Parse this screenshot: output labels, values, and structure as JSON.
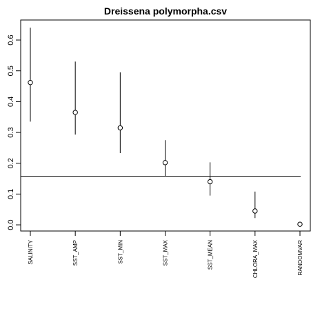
{
  "chart_data": {
    "type": "scatter",
    "title": "Dreissena polymorpha.csv",
    "xlabel": "",
    "ylabel": "",
    "categories": [
      "SALINITY",
      "SST_AMP",
      "SST_MIN",
      "SST_MAX",
      "SST_MEAN",
      "CHLORA_MAX",
      "RANDOMVAR"
    ],
    "values": [
      0.462,
      0.365,
      0.315,
      0.202,
      0.14,
      0.045,
      0.002
    ],
    "lower": [
      0.335,
      0.293,
      0.233,
      0.158,
      0.095,
      0.022,
      null
    ],
    "upper": [
      0.64,
      0.53,
      0.495,
      0.275,
      0.203,
      0.108,
      null
    ],
    "reference_line": 0.158,
    "ylim": [
      -0.02,
      0.665
    ],
    "yticks": [
      0.0,
      0.1,
      0.2,
      0.3,
      0.4,
      0.5,
      0.6
    ],
    "ytick_labels": [
      "0.0",
      "0.1",
      "0.2",
      "0.3",
      "0.4",
      "0.5",
      "0.6"
    ],
    "grid": false,
    "legend": "none"
  }
}
